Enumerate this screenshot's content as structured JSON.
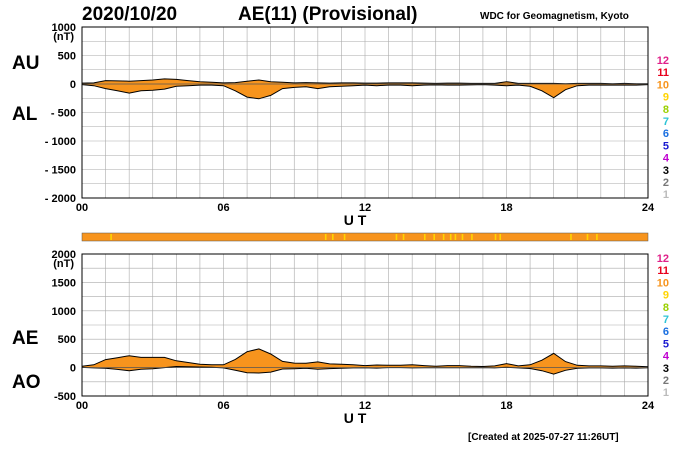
{
  "header": {
    "date": "2020/10/20",
    "title": "AE(11) (Provisional)",
    "institution": "WDC for Geomagnetism, Kyoto"
  },
  "footer": {
    "created": "[Created at 2025-07-27 11:26UT]"
  },
  "panel_labels": {
    "top_upper": "AU",
    "top_lower": "AL",
    "bottom_upper": "AE",
    "bottom_lower": "AO"
  },
  "colors": {
    "fill": "#f7941d",
    "line": "#000000",
    "grid": "#aaaaaa",
    "quality_bar": "#f7941d",
    "quality_tick": "#ffd400"
  },
  "station_legend": [
    {
      "label": "12",
      "color": "#e0218a"
    },
    {
      "label": "11",
      "color": "#e8001c"
    },
    {
      "label": "10",
      "color": "#f7941d"
    },
    {
      "label": "9",
      "color": "#ffd400"
    },
    {
      "label": "8",
      "color": "#9ad000"
    },
    {
      "label": "7",
      "color": "#2ec4d6"
    },
    {
      "label": "6",
      "color": "#1a6fe0"
    },
    {
      "label": "5",
      "color": "#1a1ad0"
    },
    {
      "label": "4",
      "color": "#c000d0"
    },
    {
      "label": "3",
      "color": "#000000"
    },
    {
      "label": "2",
      "color": "#777777"
    },
    {
      "label": "1",
      "color": "#bbbbbb"
    }
  ],
  "chart_data": [
    {
      "type": "area",
      "title": "AU / AL",
      "xlabel": "U T",
      "ylabel": "(nT)",
      "xlim": [
        0,
        24
      ],
      "ylim": [
        -2000,
        1000
      ],
      "x_ticks": [
        "00",
        "06",
        "12",
        "18",
        "24"
      ],
      "y_ticks": [
        "1000",
        "500",
        "0",
        "- 500",
        "- 1000",
        "- 1500",
        "- 2000"
      ],
      "x": [
        0,
        0.5,
        1,
        1.5,
        2,
        2.5,
        3,
        3.5,
        4,
        4.5,
        5,
        5.5,
        6,
        6.5,
        7,
        7.5,
        8,
        8.5,
        9,
        9.5,
        10,
        10.5,
        11,
        11.5,
        12,
        12.5,
        13,
        13.5,
        14,
        14.5,
        15,
        15.5,
        16,
        16.5,
        17,
        17.5,
        18,
        18.5,
        19,
        19.5,
        20,
        20.5,
        21,
        21.5,
        22,
        22.5,
        23,
        23.5,
        24
      ],
      "series": [
        {
          "name": "AU",
          "values": [
            15,
            20,
            60,
            55,
            50,
            60,
            70,
            90,
            80,
            60,
            40,
            30,
            20,
            25,
            50,
            70,
            40,
            30,
            20,
            25,
            20,
            15,
            20,
            20,
            15,
            15,
            20,
            20,
            20,
            15,
            10,
            15,
            15,
            10,
            10,
            10,
            40,
            10,
            10,
            10,
            10,
            5,
            10,
            10,
            10,
            5,
            10,
            5,
            5
          ]
        },
        {
          "name": "AL",
          "values": [
            -10,
            -30,
            -80,
            -120,
            -160,
            -120,
            -110,
            -90,
            -40,
            -30,
            -20,
            -20,
            -30,
            -120,
            -230,
            -260,
            -200,
            -80,
            -60,
            -50,
            -80,
            -50,
            -40,
            -30,
            -20,
            -30,
            -20,
            -20,
            -30,
            -20,
            -15,
            -20,
            -20,
            -15,
            -10,
            -20,
            -30,
            -20,
            -40,
            -120,
            -240,
            -100,
            -30,
            -20,
            -20,
            -20,
            -20,
            -20,
            -10
          ]
        }
      ]
    },
    {
      "type": "area",
      "title": "AE / AO",
      "xlabel": "U T",
      "ylabel": "(nT)",
      "xlim": [
        0,
        24
      ],
      "ylim": [
        -500,
        2000
      ],
      "x_ticks": [
        "00",
        "06",
        "12",
        "18",
        "24"
      ],
      "y_ticks": [
        "2000",
        "1500",
        "1000",
        "500",
        "0",
        "-500"
      ],
      "x": [
        0,
        0.5,
        1,
        1.5,
        2,
        2.5,
        3,
        3.5,
        4,
        4.5,
        5,
        5.5,
        6,
        6.5,
        7,
        7.5,
        8,
        8.5,
        9,
        9.5,
        10,
        10.5,
        11,
        11.5,
        12,
        12.5,
        13,
        13.5,
        14,
        14.5,
        15,
        15.5,
        16,
        16.5,
        17,
        17.5,
        18,
        18.5,
        19,
        19.5,
        20,
        20.5,
        21,
        21.5,
        22,
        22.5,
        23,
        23.5,
        24
      ],
      "series": [
        {
          "name": "AE",
          "values": [
            25,
            50,
            140,
            175,
            210,
            180,
            180,
            180,
            120,
            90,
            60,
            50,
            50,
            145,
            280,
            330,
            240,
            110,
            80,
            75,
            100,
            65,
            60,
            50,
            35,
            45,
            40,
            40,
            50,
            35,
            25,
            35,
            35,
            25,
            20,
            30,
            70,
            30,
            50,
            130,
            250,
            105,
            40,
            30,
            30,
            25,
            30,
            25,
            15
          ]
        },
        {
          "name": "AO",
          "values": [
            3,
            -5,
            -10,
            -32,
            -55,
            -30,
            -20,
            0,
            20,
            15,
            10,
            5,
            -5,
            -48,
            -90,
            -95,
            -80,
            -25,
            -20,
            -12,
            -30,
            -18,
            -10,
            -5,
            -3,
            -8,
            0,
            0,
            -5,
            -3,
            -3,
            -3,
            -3,
            -3,
            0,
            -5,
            5,
            -5,
            -15,
            -55,
            -115,
            -48,
            -10,
            -5,
            -5,
            -8,
            -5,
            -8,
            -3
          ]
        }
      ]
    },
    {
      "type": "bar",
      "title": "data quality strip",
      "note": "orange strip with yellow ticks (hours)",
      "tick_hours": [
        1.2,
        10.3,
        10.6,
        11.1,
        13.3,
        13.6,
        14.5,
        14.9,
        15.3,
        15.6,
        15.8,
        16.1,
        16.5,
        17.5,
        17.7,
        20.7,
        21.4,
        21.8
      ]
    }
  ]
}
